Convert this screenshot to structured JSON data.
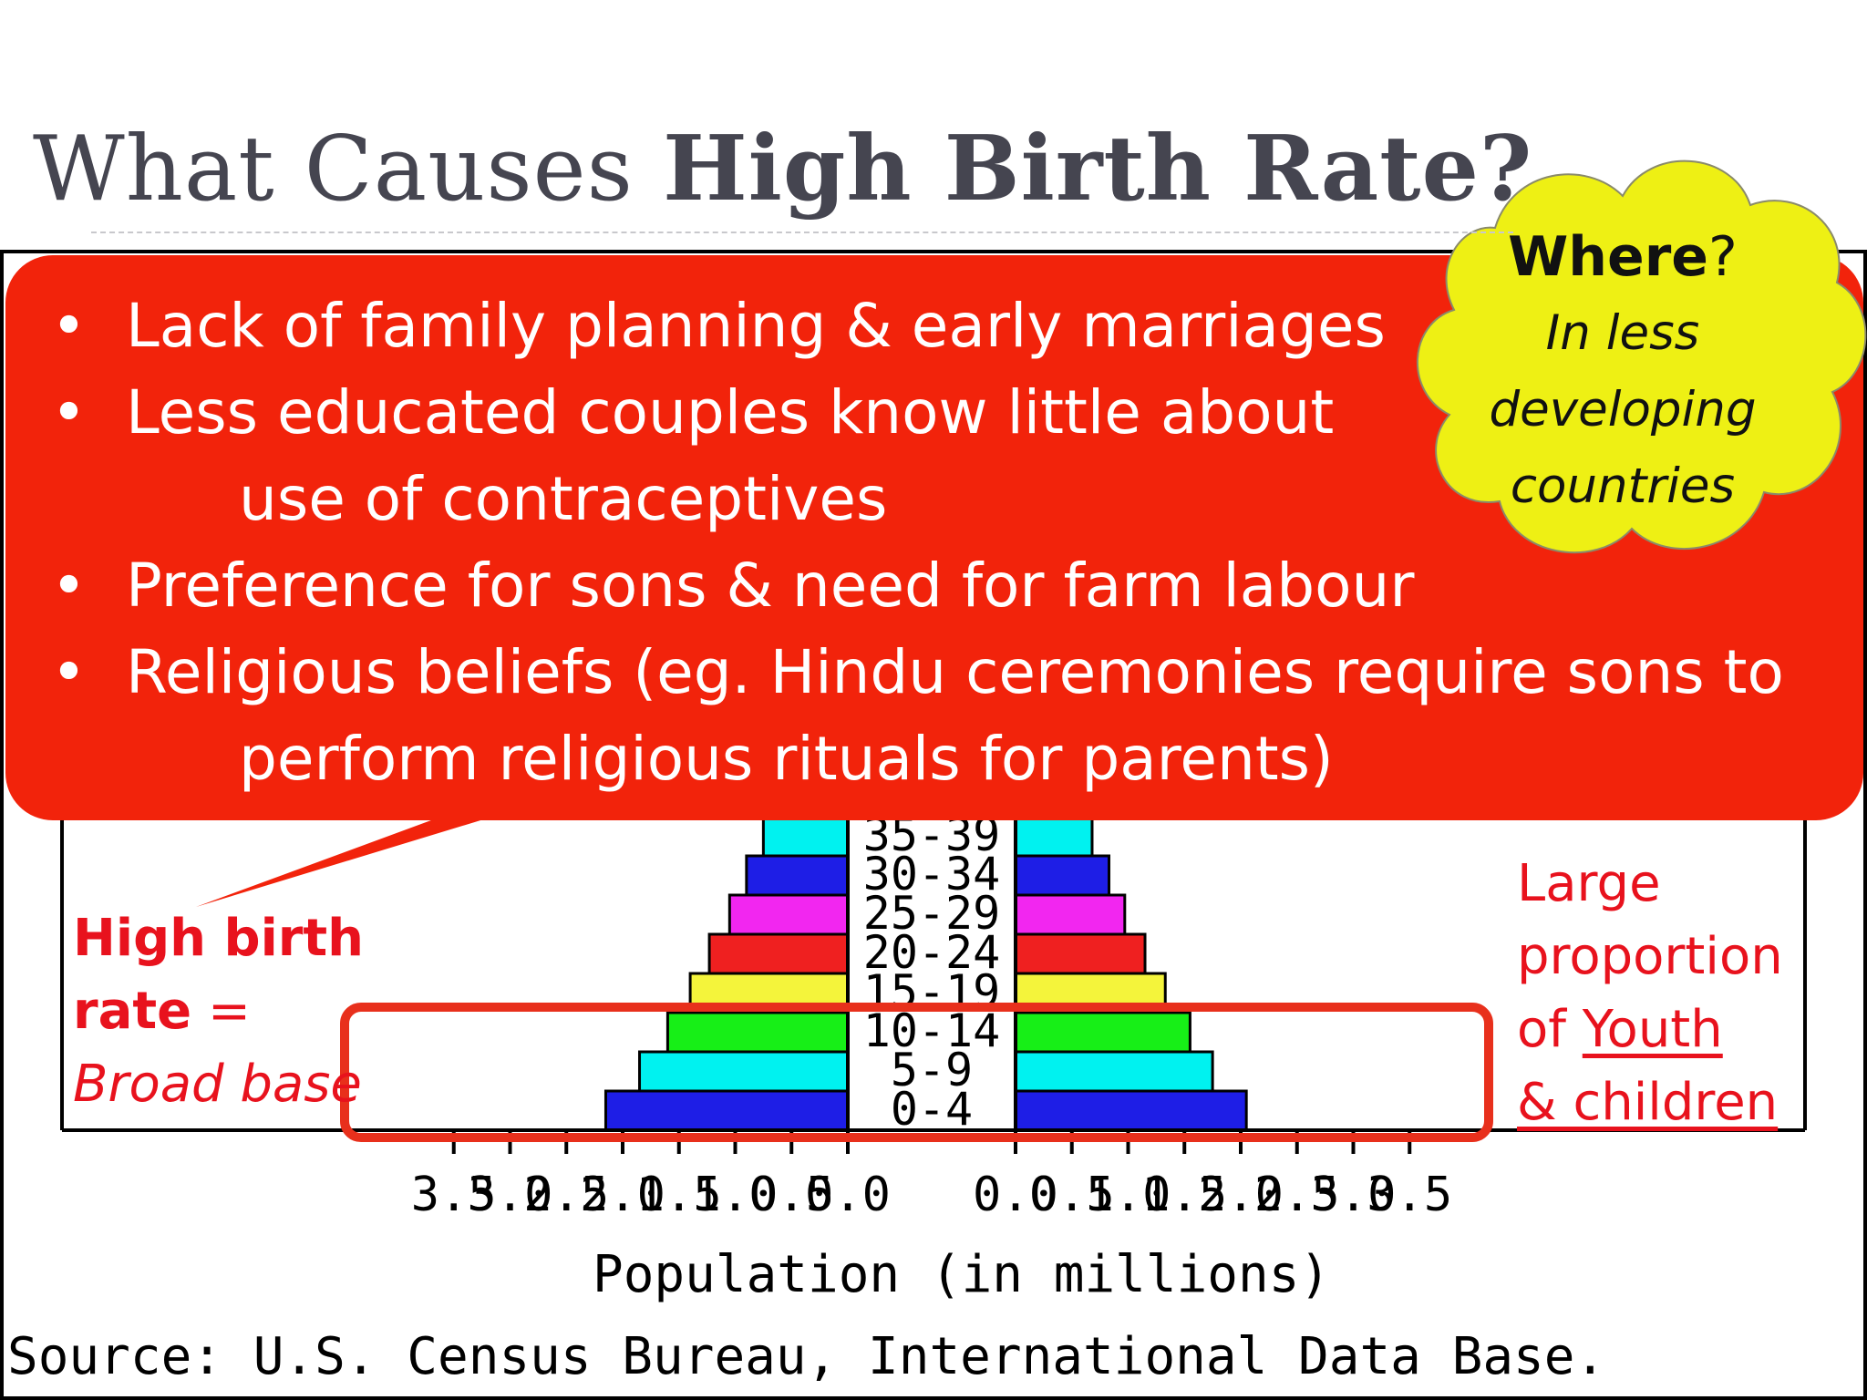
{
  "slide": {
    "title_prefix": "What Causes ",
    "title_bold": "High Birth Rate?"
  },
  "bubble": {
    "color": "#f2230b",
    "bullets": [
      {
        "text": "Lack of family planning & early marriages"
      },
      {
        "text": "Less educated couples know little about",
        "continuation": "use of contraceptives"
      },
      {
        "text": "Preference for sons & need for farm labour"
      },
      {
        "text": "Religious beliefs (eg. Hindu ceremonies require sons to",
        "continuation": "perform religious rituals for parents)"
      }
    ]
  },
  "cloud": {
    "color": "#eef014",
    "heading": "Where",
    "heading_mark": "?",
    "line1": "In less",
    "line2": "developing",
    "line3": "countries"
  },
  "left_note": {
    "line1": "High birth",
    "line2a": "rate",
    "line2b": " =",
    "line3": "Broad base"
  },
  "right_note": {
    "line1": "Large",
    "line2": "proportion",
    "line3a": "of ",
    "line3b": "Youth",
    "line4": "& children"
  },
  "chart_data": {
    "type": "bar",
    "categories": [
      "0-4",
      "5-9",
      "10-14",
      "15-19",
      "20-24",
      "25-29",
      "30-34",
      "35-39"
    ],
    "category_labels_visible": [
      "0-4",
      "5-9",
      "10-14",
      "15-19",
      "20-24",
      "25-29",
      "30-34",
      "35-39"
    ],
    "series": [
      {
        "values": [
          2.15,
          1.85,
          1.6,
          1.4,
          1.23,
          1.05,
          0.9,
          0.75
        ]
      },
      {
        "values": [
          2.05,
          1.75,
          1.55,
          1.33,
          1.15,
          0.97,
          0.83,
          0.68
        ]
      }
    ],
    "colors": [
      "#1e1ee6",
      "#00f2f0",
      "#17ef17",
      "#f4f43b",
      "#ef2020",
      "#f226f0",
      "#1e1ee6",
      "#00f2f0"
    ],
    "xticks": [
      "3.5",
      "3.0",
      "2.5",
      "2.0",
      "1.5",
      "1.0",
      "0.5",
      "0.0",
      "0.0",
      "0.5",
      "1.0",
      "1.5",
      "2.0",
      "2.5",
      "3.0",
      "3.5"
    ],
    "xlabel": "Population (in millions)",
    "source": "Source: U.S. Census Bureau, International Data Base.",
    "xlim": [
      0,
      3.5
    ]
  }
}
